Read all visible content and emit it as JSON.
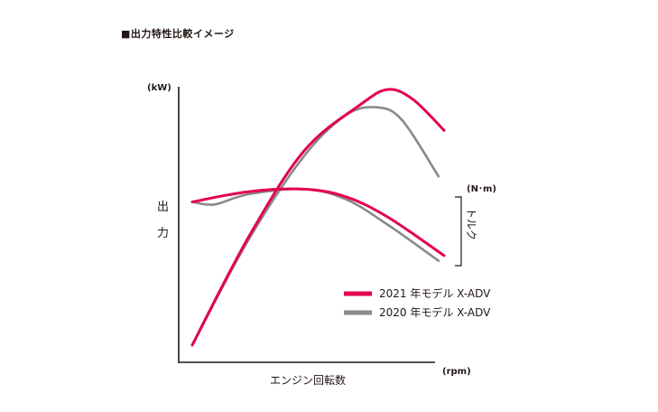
{
  "chart_data": {
    "type": "line",
    "title": "■出力特性比較イメージ",
    "y_left_unit": "(kW)",
    "y_left_label": [
      "出",
      "力"
    ],
    "y_right_unit": "(N･m)",
    "y_right_label": "トルク",
    "xlabel": "エンジン回転数",
    "x_unit": "(rpm)",
    "legend_position": "bottom-right",
    "series": [
      {
        "name": "2021 年モデル X-ADV",
        "color": "#e4004f",
        "power": [
          [
            0.0,
            0.0
          ],
          [
            0.2,
            0.42
          ],
          [
            0.4,
            0.76
          ],
          [
            0.6,
            0.94
          ],
          [
            0.7,
            1.0
          ],
          [
            0.79,
            0.96
          ],
          [
            0.9,
            0.84
          ]
        ],
        "torque": [
          [
            0.0,
            0.56
          ],
          [
            0.2,
            0.6
          ],
          [
            0.4,
            0.61
          ],
          [
            0.55,
            0.58
          ],
          [
            0.7,
            0.5
          ],
          [
            0.9,
            0.35
          ]
        ]
      },
      {
        "name": "2020 年モデル X-ADV",
        "color": "#898989",
        "power": [
          [
            0.0,
            0.0
          ],
          [
            0.2,
            0.41
          ],
          [
            0.4,
            0.74
          ],
          [
            0.55,
            0.9
          ],
          [
            0.66,
            0.93
          ],
          [
            0.75,
            0.88
          ],
          [
            0.88,
            0.66
          ]
        ],
        "torque": [
          [
            0.0,
            0.56
          ],
          [
            0.08,
            0.55
          ],
          [
            0.2,
            0.59
          ],
          [
            0.4,
            0.61
          ],
          [
            0.55,
            0.57
          ],
          [
            0.7,
            0.47
          ],
          [
            0.88,
            0.33
          ]
        ]
      }
    ]
  }
}
